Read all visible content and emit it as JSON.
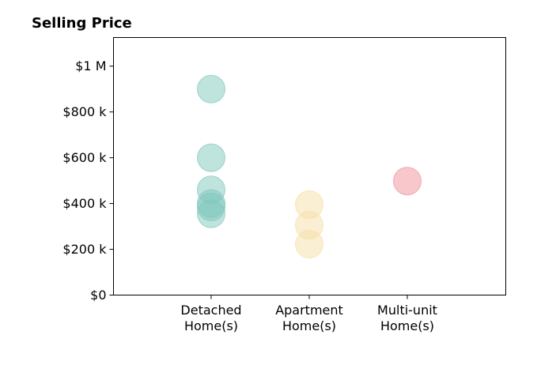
{
  "chart_data": {
    "type": "scatter",
    "title": "Selling Price",
    "xlabel": "",
    "ylabel": "",
    "ylim": [
      0,
      1125000
    ],
    "y_ticks": [
      {
        "value": 0,
        "label": "$0"
      },
      {
        "value": 200000,
        "label": "$200 k"
      },
      {
        "value": 400000,
        "label": "$400 k"
      },
      {
        "value": 600000,
        "label": "$600 k"
      },
      {
        "value": 800000,
        "label": "$800 k"
      },
      {
        "value": 1000000,
        "label": "$1 M"
      }
    ],
    "categories": [
      {
        "line1": "Detached",
        "line2": "Home(s)"
      },
      {
        "line1": "Apartment",
        "line2": "Home(s)"
      },
      {
        "line1": "Multi-unit",
        "line2": "Home(s)"
      }
    ],
    "grid": false,
    "series": [
      {
        "color": "#7fc8bc",
        "values": [
          900000,
          600000,
          460000,
          400000,
          385000,
          355000
        ]
      },
      {
        "color": "#f5dfa8",
        "values": [
          395000,
          305000,
          222000
        ]
      },
      {
        "color": "#f08f98",
        "values": [
          498000
        ]
      }
    ]
  }
}
